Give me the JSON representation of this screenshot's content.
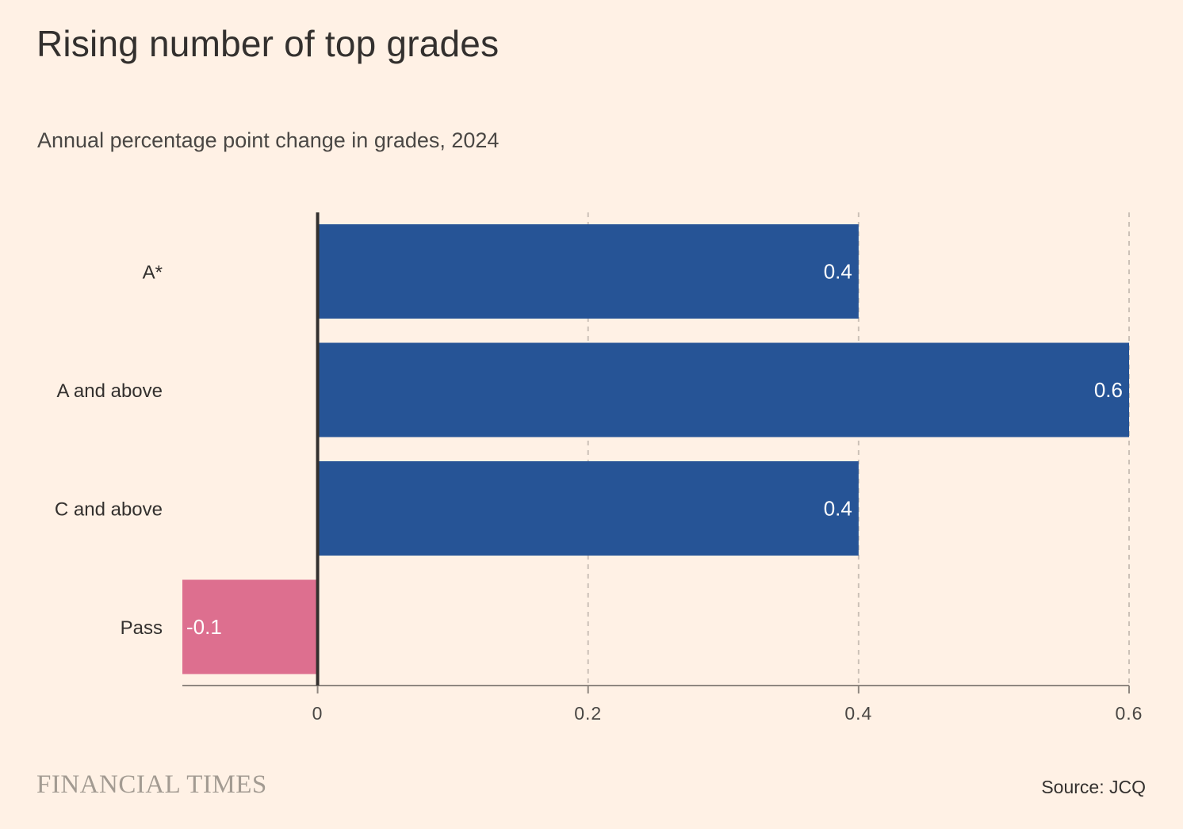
{
  "header": {
    "title": "Rising number of top grades",
    "subtitle": "Annual percentage point change in grades, 2024"
  },
  "footer": {
    "brand": "FINANCIAL TIMES",
    "source": "Source: JCQ"
  },
  "colors": {
    "background": "#FFF1E5",
    "positive": "#265496",
    "negative": "#DD6F8F",
    "grid": "#CCC1B7",
    "axis": "#33302E"
  },
  "chart_data": {
    "type": "bar",
    "orientation": "horizontal",
    "categories": [
      "A*",
      "A and above",
      "C and above",
      "Pass"
    ],
    "values": [
      0.4,
      0.6,
      0.4,
      -0.1
    ],
    "value_labels": [
      "0.4",
      "0.6",
      "0.4",
      "-0.1"
    ],
    "xlim": [
      -0.1,
      0.6
    ],
    "xticks": [
      0,
      0.2,
      0.4,
      0.6
    ],
    "xtick_labels": [
      "0",
      "0.2",
      "0.4",
      "0.6"
    ],
    "grid": true
  }
}
